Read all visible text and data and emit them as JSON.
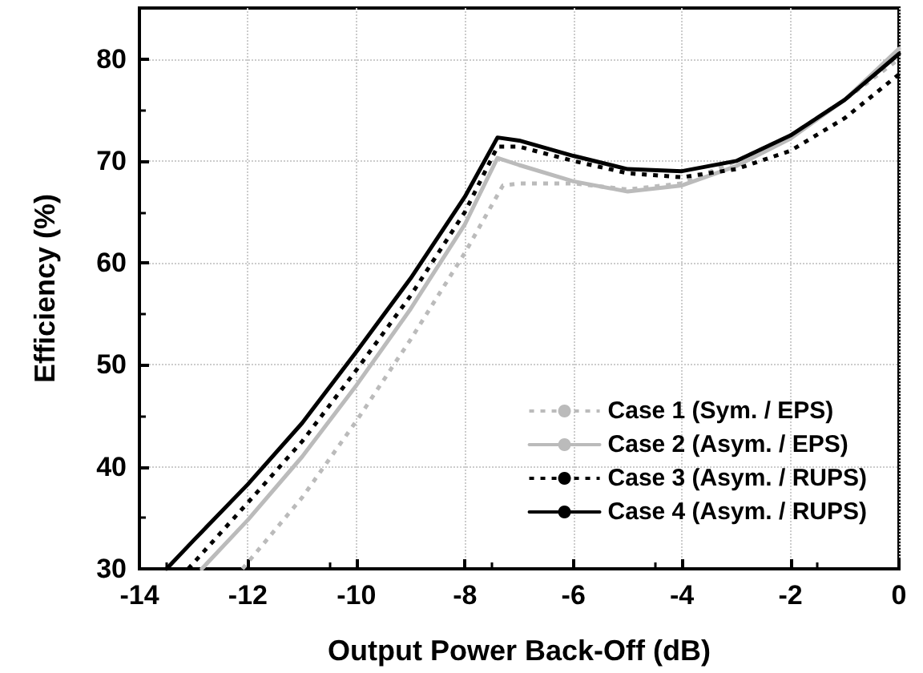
{
  "chart_data": {
    "type": "line",
    "xlabel": "Output Power Back-Off (dB)",
    "ylabel": "Efficiency (%)",
    "xlim": [
      -14,
      0
    ],
    "xticks": [
      -14,
      -12,
      -10,
      -8,
      -6,
      -4,
      -2,
      0
    ],
    "ylim": [
      30,
      85
    ],
    "yticks": [
      30,
      40,
      50,
      60,
      70,
      80
    ],
    "grid": true,
    "legend": "bottom right",
    "marker": "none",
    "series": [
      {
        "name": "Case 1 (Sym. / EPS)",
        "color": "#bbbbbb",
        "line_style": "dotted",
        "x": [
          -12.1,
          -11,
          -10,
          -9,
          -8,
          -7.3,
          -7,
          -6,
          -5,
          -4,
          -3,
          -2,
          -1,
          0
        ],
        "values": [
          30,
          37,
          44.5,
          52.5,
          61,
          67.6,
          67.8,
          67.8,
          67.2,
          67.8,
          70,
          72.5,
          76,
          80
        ]
      },
      {
        "name": "Case 2 (Asym. / EPS)",
        "color": "#bbbbbb",
        "line_style": "solid",
        "x": [
          -12.85,
          -12,
          -11,
          -10,
          -9,
          -8,
          -7.4,
          -7,
          -6,
          -5,
          -4,
          -3,
          -2,
          -1,
          0
        ],
        "values": [
          30,
          34.8,
          41,
          48,
          55.5,
          63.8,
          70.3,
          69.6,
          68,
          67,
          67.6,
          69.5,
          72.2,
          76,
          81
        ]
      },
      {
        "name": "Case 3 (Asym. / RUPS)",
        "color": "#000000",
        "line_style": "dotted",
        "x": [
          -13.1,
          -12,
          -11,
          -10,
          -9,
          -8,
          -7.4,
          -7,
          -6,
          -5,
          -4,
          -3,
          -2,
          -1,
          0
        ],
        "values": [
          30,
          36.5,
          42.5,
          49.5,
          56.8,
          65,
          71.4,
          71.4,
          70,
          68.8,
          68.4,
          69.2,
          71,
          74.2,
          78.5
        ]
      },
      {
        "name": "Case 4 (Asym. / RUPS)",
        "color": "#000000",
        "line_style": "solid",
        "x": [
          -13.5,
          -13,
          -12,
          -11,
          -10,
          -9,
          -8,
          -7.4,
          -7,
          -6,
          -5,
          -4,
          -3,
          -2,
          -1,
          0
        ],
        "values": [
          30,
          32.8,
          38.3,
          44.3,
          51.3,
          58.5,
          66.5,
          72.3,
          72,
          70.5,
          69.2,
          69,
          70,
          72.5,
          76,
          80.5
        ]
      }
    ]
  }
}
